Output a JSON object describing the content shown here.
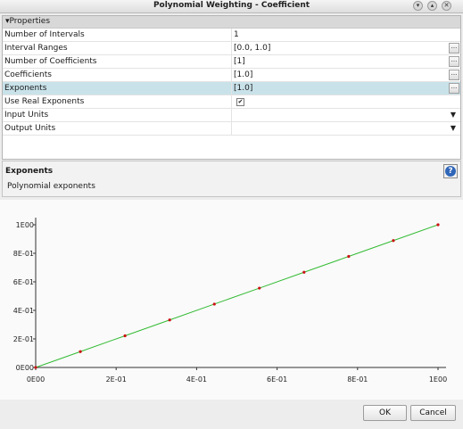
{
  "window": {
    "title": "Polynomial Weighting - Coefficient",
    "icons": [
      "chevron-down-icon",
      "chevron-up-icon",
      "close-icon"
    ]
  },
  "properties": {
    "header": "Properties",
    "rows": [
      {
        "name": "Number of Intervals",
        "value": "1",
        "control": "none"
      },
      {
        "name": "Interval Ranges",
        "value": "[0.0, 1.0]",
        "control": "ellipsis"
      },
      {
        "name": "Number of Coefficients",
        "value": "[1]",
        "control": "ellipsis"
      },
      {
        "name": "Coefficients",
        "value": "[1.0]",
        "control": "ellipsis"
      },
      {
        "name": "Exponents",
        "value": "[1.0]",
        "control": "ellipsis",
        "selected": true
      },
      {
        "name": "Use Real Exponents",
        "value": "",
        "control": "checkbox",
        "checked": true
      },
      {
        "name": "Input Units",
        "value": "",
        "control": "dropdown"
      },
      {
        "name": "Output Units",
        "value": "",
        "control": "dropdown"
      }
    ],
    "ellipsis_label": "...",
    "checkbox_mark": "✔",
    "dropdown_mark": "▼"
  },
  "description": {
    "title": "Exponents",
    "text": "Polynomial exponents",
    "help_label": "?"
  },
  "splitter_grip": "....",
  "chart_data": {
    "type": "line",
    "x": [
      0.0,
      0.111,
      0.222,
      0.333,
      0.444,
      0.556,
      0.667,
      0.778,
      0.889,
      1.0
    ],
    "series": [
      {
        "values": [
          0.0,
          0.111,
          0.222,
          0.333,
          0.444,
          0.556,
          0.667,
          0.778,
          0.889,
          1.0
        ],
        "line_color": "#33bb33",
        "marker_color": "#cc1111"
      }
    ],
    "xlim": [
      0,
      1
    ],
    "ylim": [
      0,
      1
    ],
    "xticks": [
      0,
      0.2,
      0.4,
      0.6,
      0.8,
      1.0
    ],
    "xtick_labels": [
      "0E00",
      "2E-01",
      "4E-01",
      "6E-01",
      "8E-01",
      "1E00"
    ],
    "yticks": [
      0,
      0.2,
      0.4,
      0.6,
      0.8,
      1.0
    ],
    "ytick_labels": [
      "0E00",
      "2E-01",
      "4E-01",
      "6E-01",
      "8E-01",
      "1E00"
    ],
    "title": "",
    "xlabel": "",
    "ylabel": "",
    "grid": false
  },
  "buttons": {
    "ok": "OK",
    "cancel": "Cancel"
  }
}
